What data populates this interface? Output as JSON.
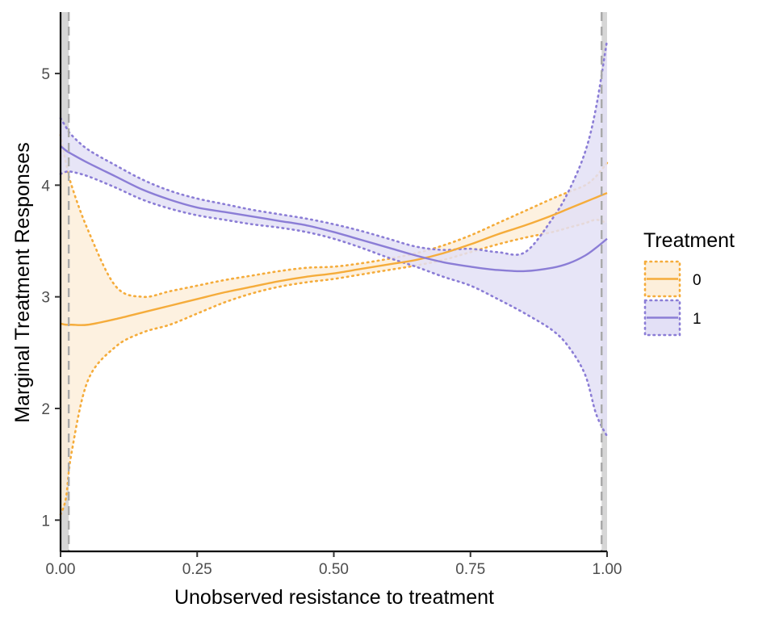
{
  "chart_data": {
    "type": "line",
    "xlabel": "Unobserved resistance to treatment",
    "ylabel": "Marginal Treatment Responses",
    "xlim": [
      0,
      1
    ],
    "ylim": [
      0.72,
      5.55
    ],
    "x_ticks": [
      0.0,
      0.25,
      0.5,
      0.75,
      1.0
    ],
    "x_tick_labels": [
      "0.00",
      "0.25",
      "0.50",
      "0.75",
      "1.00"
    ],
    "y_ticks": [
      1,
      2,
      3,
      4,
      5
    ],
    "y_tick_labels": [
      "1",
      "2",
      "3",
      "4",
      "5"
    ],
    "grid": false,
    "legend": {
      "title": "Treatment",
      "position": "right"
    },
    "x": [
      0.0,
      0.01,
      0.02,
      0.05,
      0.1,
      0.15,
      0.2,
      0.25,
      0.3,
      0.35,
      0.4,
      0.45,
      0.5,
      0.55,
      0.6,
      0.65,
      0.7,
      0.75,
      0.8,
      0.85,
      0.9,
      0.93,
      0.96,
      0.98,
      1.0
    ],
    "series": [
      {
        "name": "0",
        "color": "#F5AC3B",
        "fill": "#FDEFDB",
        "values": [
          2.76,
          2.75,
          2.75,
          2.75,
          2.8,
          2.86,
          2.92,
          2.98,
          3.04,
          3.09,
          3.14,
          3.18,
          3.21,
          3.25,
          3.29,
          3.33,
          3.39,
          3.47,
          3.56,
          3.64,
          3.73,
          3.79,
          3.85,
          3.89,
          3.93
        ],
        "lower": [
          1.05,
          1.2,
          1.6,
          2.25,
          2.55,
          2.68,
          2.75,
          2.85,
          2.95,
          3.03,
          3.09,
          3.13,
          3.16,
          3.2,
          3.24,
          3.28,
          3.33,
          3.4,
          3.47,
          3.53,
          3.58,
          3.62,
          3.66,
          3.69,
          3.66
        ],
        "upper": [
          4.45,
          4.2,
          4.0,
          3.6,
          3.1,
          3.0,
          3.05,
          3.1,
          3.15,
          3.19,
          3.23,
          3.26,
          3.27,
          3.3,
          3.34,
          3.39,
          3.46,
          3.55,
          3.66,
          3.77,
          3.88,
          3.94,
          4.0,
          4.08,
          4.2
        ]
      },
      {
        "name": "1",
        "color": "#8B7DD6",
        "fill": "#E3E0F6",
        "values": [
          4.35,
          4.31,
          4.28,
          4.2,
          4.08,
          3.96,
          3.87,
          3.8,
          3.76,
          3.72,
          3.68,
          3.64,
          3.58,
          3.51,
          3.44,
          3.37,
          3.31,
          3.27,
          3.24,
          3.23,
          3.26,
          3.3,
          3.37,
          3.44,
          3.52
        ],
        "lower": [
          4.1,
          4.12,
          4.12,
          4.08,
          3.98,
          3.87,
          3.79,
          3.73,
          3.69,
          3.65,
          3.62,
          3.58,
          3.52,
          3.44,
          3.35,
          3.27,
          3.18,
          3.1,
          2.98,
          2.85,
          2.7,
          2.55,
          2.3,
          1.95,
          1.75
        ],
        "upper": [
          4.6,
          4.52,
          4.45,
          4.32,
          4.18,
          4.05,
          3.95,
          3.88,
          3.83,
          3.78,
          3.74,
          3.7,
          3.65,
          3.59,
          3.52,
          3.45,
          3.42,
          3.43,
          3.4,
          3.4,
          3.7,
          3.95,
          4.3,
          4.7,
          5.3
        ]
      }
    ],
    "reference_lines": [
      {
        "x": 0.015,
        "style": "dashed",
        "color": "#A8A8A8"
      },
      {
        "x": 0.99,
        "style": "dashed",
        "color": "#A8A8A8"
      }
    ],
    "shaded_regions": [
      {
        "x_from": 0.0,
        "x_to": 0.015,
        "color": "#D6D6D6"
      },
      {
        "x_from": 0.99,
        "x_to": 1.0,
        "color": "#D6D6D6"
      }
    ]
  }
}
